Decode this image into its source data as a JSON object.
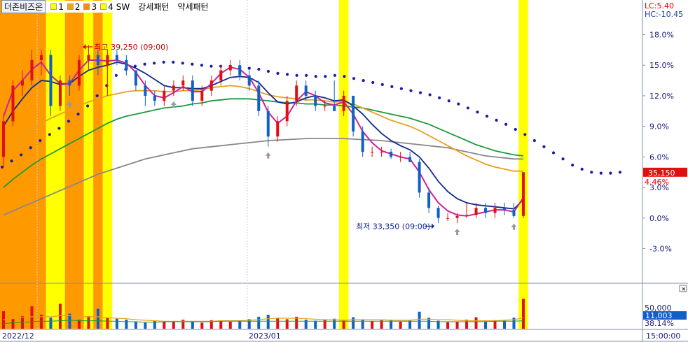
{
  "stock_name": "더존비즈온",
  "legend_items": [
    {
      "label": "1",
      "color": "#ffff00"
    },
    {
      "label": "2",
      "color": "#ffa500"
    },
    {
      "label": "3",
      "color": "#ff8c00"
    },
    {
      "label": "4",
      "color": "#ffff00"
    }
  ],
  "pattern_labels": [
    "SW",
    "강세패턴",
    "약세패턴"
  ],
  "top_right": {
    "lc": "LC:5.40",
    "hc": "HC:-10.45"
  },
  "price_tag": "35,150",
  "price_change": "4.46%",
  "volume_tag": "11,003",
  "volume_top": "50,000",
  "volume_pct": "38.14%",
  "x_axis": {
    "labels": [
      "2022/12",
      "2023/01"
    ],
    "time": "15:00:00"
  },
  "annotations": {
    "high": "최고 39,250 (09:00)",
    "low": "최저 33,350 (09:00)"
  },
  "chart_data": {
    "type": "candlestick",
    "y_axis_ticks": [
      "18.0%",
      "15.0%",
      "12.0%",
      "9.0%",
      "6.0%",
      "3.0%",
      "0.0%",
      "-3.0%"
    ],
    "y_range_pct": [
      -6.4,
      21.4
    ],
    "high": 39250,
    "low": 33350,
    "last_price": 35150,
    "change_pct": 4.46,
    "highlight_bands": [
      {
        "start": 0,
        "end": 4,
        "color": "#ff9900"
      },
      {
        "start": 5,
        "end": 6,
        "color": "#ffff00"
      },
      {
        "start": 7,
        "end": 8,
        "color": "#ff9900"
      },
      {
        "start": 9,
        "end": 10,
        "color": "#ffff00"
      },
      {
        "start": 10,
        "end": 10,
        "color": "#ff9900"
      },
      {
        "start": 11,
        "end": 11,
        "color": "#ffff00"
      },
      {
        "start": 36,
        "end": 36,
        "color": "#ffff00"
      },
      {
        "start": 55,
        "end": 55,
        "color": "#ffff00"
      }
    ],
    "candles": [
      [
        6.0,
        10.0,
        5.0,
        9.5
      ],
      [
        9.5,
        13.5,
        9.0,
        13.0
      ],
      [
        13.0,
        14.5,
        12.0,
        13.5
      ],
      [
        13.5,
        16.5,
        13.0,
        15.5
      ],
      [
        15.5,
        16.5,
        14.0,
        16.0
      ],
      [
        16.0,
        16.5,
        10.0,
        11.0
      ],
      [
        11.0,
        14.0,
        10.5,
        13.5
      ],
      [
        13.5,
        14.0,
        12.0,
        13.0
      ],
      [
        13.0,
        16.0,
        12.5,
        15.5
      ],
      [
        15.5,
        17.0,
        14.5,
        16.0
      ],
      [
        16.0,
        16.5,
        14.0,
        15.0
      ],
      [
        15.0,
        16.5,
        12.0,
        16.0
      ],
      [
        16.0,
        16.5,
        15.0,
        15.5
      ],
      [
        15.5,
        16.0,
        14.0,
        14.5
      ],
      [
        14.5,
        14.5,
        12.5,
        13.0
      ],
      [
        13.0,
        13.5,
        11.0,
        12.0
      ],
      [
        12.0,
        12.5,
        11.0,
        11.5
      ],
      [
        11.5,
        13.0,
        11.0,
        12.5
      ],
      [
        12.5,
        13.5,
        12.0,
        13.0
      ],
      [
        13.0,
        14.0,
        12.5,
        13.5
      ],
      [
        13.5,
        14.0,
        11.0,
        11.5
      ],
      [
        11.5,
        13.0,
        11.0,
        12.5
      ],
      [
        12.5,
        14.0,
        12.0,
        13.5
      ],
      [
        13.5,
        15.0,
        13.0,
        14.5
      ],
      [
        14.5,
        15.5,
        14.0,
        15.0
      ],
      [
        15.0,
        15.5,
        13.5,
        14.0
      ],
      [
        14.0,
        14.5,
        12.5,
        13.0
      ],
      [
        13.0,
        13.5,
        10.0,
        10.5
      ],
      [
        10.5,
        11.0,
        7.0,
        8.0
      ],
      [
        8.0,
        10.0,
        7.5,
        9.5
      ],
      [
        9.5,
        12.0,
        9.0,
        11.5
      ],
      [
        11.5,
        13.5,
        11.0,
        13.0
      ],
      [
        13.0,
        13.5,
        11.5,
        12.0
      ],
      [
        12.0,
        12.5,
        10.5,
        11.0
      ],
      [
        11.0,
        11.5,
        10.5,
        11.0
      ],
      [
        11.0,
        13.5,
        10.5,
        10.5
      ],
      [
        10.5,
        12.5,
        10.0,
        12.0
      ],
      [
        12.0,
        12.0,
        8.0,
        8.5
      ],
      [
        8.5,
        9.0,
        6.0,
        6.5
      ],
      [
        6.5,
        7.0,
        6.0,
        6.5
      ],
      [
        6.5,
        7.0,
        6.0,
        6.5
      ],
      [
        6.5,
        6.8,
        5.8,
        6.0
      ],
      [
        6.0,
        6.5,
        5.5,
        6.0
      ],
      [
        6.0,
        6.5,
        5.5,
        5.5
      ],
      [
        5.5,
        5.8,
        2.0,
        2.5
      ],
      [
        2.5,
        3.0,
        0.5,
        1.0
      ],
      [
        1.0,
        1.2,
        -0.5,
        0.0
      ],
      [
        0.0,
        0.5,
        -0.3,
        0.0
      ],
      [
        0.0,
        0.5,
        -0.5,
        0.2
      ],
      [
        0.2,
        1.5,
        0.0,
        0.3
      ],
      [
        0.3,
        1.5,
        0.0,
        1.0
      ],
      [
        1.0,
        1.5,
        0.0,
        0.5
      ],
      [
        0.5,
        1.5,
        0.0,
        1.0
      ],
      [
        1.0,
        1.5,
        0.3,
        0.8
      ],
      [
        0.8,
        1.5,
        0.0,
        0.2
      ],
      [
        0.2,
        4.5,
        0.0,
        4.5
      ]
    ],
    "ma_series": [
      {
        "color": "#cc2299",
        "values": [
          10,
          12.5,
          13.5,
          14.6,
          15.3,
          14.0,
          13.2,
          13.2,
          14.5,
          15.5,
          15.5,
          15.4,
          15.5,
          15.2,
          14.3,
          13.0,
          12.0,
          11.8,
          12.3,
          12.9,
          12.4,
          12.4,
          13.2,
          14.2,
          14.8,
          14.6,
          13.8,
          12.3,
          10.4,
          9.3,
          10.0,
          11.5,
          12.4,
          12.0,
          11.3,
          11.1,
          11.4,
          10.2,
          8.5,
          7.4,
          6.6,
          6.3,
          6.0,
          5.8,
          4.5,
          2.8,
          1.5,
          0.7,
          0.3,
          0.2,
          0.4,
          0.6,
          0.8,
          0.8,
          0.6,
          2.0
        ]
      },
      {
        "color": "#102a8c",
        "values": [
          9,
          10.5,
          11.7,
          12.8,
          13.5,
          13.4,
          13.1,
          13.2,
          13.9,
          14.5,
          14.8,
          15.0,
          15.3,
          15.1,
          14.7,
          14.2,
          13.6,
          13.0,
          12.8,
          12.8,
          12.7,
          12.7,
          13.0,
          13.4,
          13.8,
          13.9,
          13.8,
          13.3,
          12.3,
          11.4,
          11.2,
          11.4,
          11.8,
          12.0,
          11.8,
          11.5,
          11.6,
          11.0,
          10.2,
          9.2,
          8.3,
          7.6,
          7.1,
          6.7,
          6.0,
          4.9,
          3.6,
          2.6,
          1.9,
          1.5,
          1.3,
          1.2,
          1.1,
          1.0,
          0.9,
          1.8
        ]
      },
      {
        "color": "#e8a020",
        "values": [
          6.5,
          7.3,
          8.0,
          8.7,
          9.3,
          9.8,
          10.2,
          10.6,
          11.0,
          11.4,
          11.7,
          12.0,
          12.2,
          12.4,
          12.5,
          12.5,
          12.5,
          12.4,
          12.4,
          12.5,
          12.5,
          12.6,
          12.8,
          12.9,
          13.0,
          12.9,
          12.7,
          12.4,
          12.1,
          11.9,
          11.8,
          11.7,
          11.6,
          11.6,
          11.5,
          11.4,
          11.4,
          11.2,
          10.8,
          10.4,
          10.0,
          9.6,
          9.3,
          9.0,
          8.6,
          8.1,
          7.6,
          7.1,
          6.6,
          6.1,
          5.7,
          5.3,
          5.0,
          4.8,
          4.6,
          4.6
        ]
      },
      {
        "color": "#1a9a3c",
        "values": [
          3,
          3.8,
          4.5,
          5.2,
          5.8,
          6.3,
          6.8,
          7.3,
          7.8,
          8.3,
          8.8,
          9.3,
          9.7,
          10.0,
          10.2,
          10.4,
          10.6,
          10.8,
          10.9,
          11.0,
          11.2,
          11.3,
          11.5,
          11.6,
          11.7,
          11.7,
          11.7,
          11.6,
          11.5,
          11.4,
          11.3,
          11.3,
          11.2,
          11.2,
          11.1,
          11.1,
          11.0,
          10.9,
          10.8,
          10.6,
          10.4,
          10.2,
          10.0,
          9.8,
          9.5,
          9.2,
          8.8,
          8.4,
          8.0,
          7.6,
          7.2,
          6.9,
          6.6,
          6.4,
          6.2,
          6.1
        ]
      },
      {
        "color": "#888888",
        "values": [
          0.3,
          0.7,
          1.1,
          1.5,
          1.9,
          2.3,
          2.7,
          3.1,
          3.5,
          3.9,
          4.3,
          4.6,
          4.9,
          5.2,
          5.5,
          5.8,
          6.0,
          6.2,
          6.4,
          6.6,
          6.8,
          6.9,
          7.0,
          7.1,
          7.2,
          7.3,
          7.4,
          7.5,
          7.6,
          7.65,
          7.7,
          7.75,
          7.8,
          7.8,
          7.8,
          7.8,
          7.8,
          7.75,
          7.7,
          7.65,
          7.6,
          7.5,
          7.4,
          7.3,
          7.2,
          7.1,
          7.0,
          6.9,
          6.7,
          6.5,
          6.3,
          6.1,
          6.0,
          5.9,
          5.8,
          5.8
        ]
      }
    ],
    "dotted_line": {
      "color": "#1a1aa8",
      "values": [
        5,
        5.6,
        6.2,
        6.9,
        7.6,
        8.2,
        8.8,
        9.5,
        10.2,
        11,
        12,
        13,
        14,
        14.6,
        14.9,
        15.1,
        15.2,
        15.3,
        15.3,
        15.2,
        15.1,
        15.0,
        14.9,
        14.9,
        14.9,
        14.8,
        14.7,
        14.6,
        14.4,
        14.2,
        14.1,
        14.0,
        14.0,
        13.9,
        13.9,
        14.0,
        13.9,
        13.7,
        13.5,
        13.3,
        13.1,
        12.9,
        12.7,
        12.5,
        12.3,
        12.1,
        11.8,
        11.5,
        11.2,
        10.8,
        10.4,
        10.0,
        9.6,
        9.2,
        8.7,
        8.2,
        7.6,
        7.0,
        6.4,
        5.8,
        5.2,
        4.8,
        4.5,
        4.4,
        4.4,
        4.5
      ]
    },
    "volume": [
      35,
      20,
      25,
      45,
      28,
      22,
      50,
      30,
      18,
      25,
      40,
      22,
      20,
      18,
      14,
      12,
      16,
      14,
      15,
      18,
      15,
      12,
      17,
      16,
      14,
      16,
      19,
      24,
      28,
      22,
      19,
      24,
      18,
      16,
      18,
      20,
      16,
      23,
      18,
      15,
      17,
      18,
      14,
      16,
      34,
      22,
      16,
      13,
      14,
      18,
      23,
      15,
      17,
      16,
      22,
      60
    ],
    "volume_ratio": [
      10,
      12,
      13,
      14,
      15,
      15,
      16,
      17,
      16,
      16,
      16,
      15,
      15,
      14,
      14,
      13,
      13,
      14,
      14,
      14,
      14,
      14,
      14,
      15,
      15,
      15,
      15,
      15,
      15,
      15,
      15,
      15,
      15,
      15,
      15,
      15,
      15,
      15,
      15,
      15,
      15,
      15,
      15,
      15,
      15,
      15,
      14,
      14,
      14,
      14,
      14,
      14,
      15,
      15,
      15,
      16
    ],
    "volume_ma": [
      18,
      20,
      22,
      24,
      24,
      24,
      26,
      26,
      24,
      24,
      24,
      22,
      21,
      20,
      18,
      17,
      16,
      15,
      15,
      15,
      15,
      15,
      15,
      16,
      16,
      16,
      17,
      18,
      20,
      21,
      21,
      21,
      20,
      19,
      18,
      18,
      17,
      18,
      18,
      18,
      18,
      17,
      17,
      17,
      19,
      19,
      18,
      18,
      17,
      16,
      16,
      16,
      16,
      17,
      18,
      22
    ]
  }
}
